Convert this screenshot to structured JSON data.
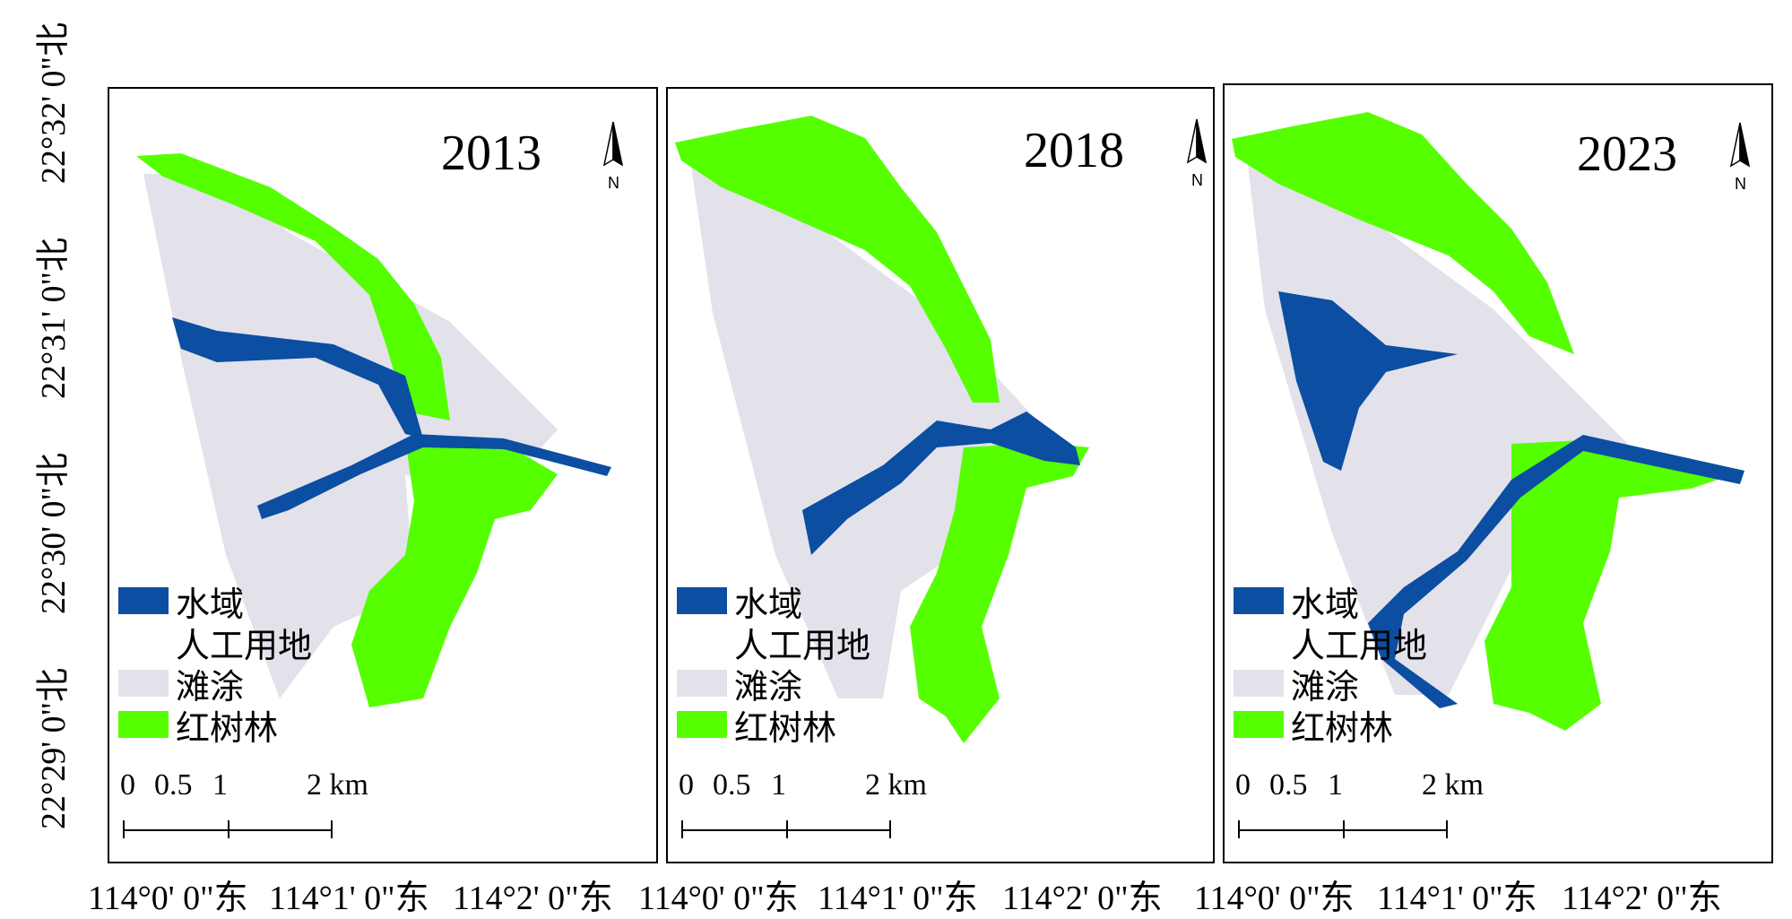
{
  "latitude_labels": [
    "22°32' 0\"北",
    "22°31' 0\"北",
    "22°30' 0\"北",
    "22°29' 0\"北"
  ],
  "longitude_labels": [
    "114°0' 0\"东",
    "114°1' 0\"东",
    "114°2' 0\"东"
  ],
  "panels": [
    {
      "year": "2013"
    },
    {
      "year": "2018"
    },
    {
      "year": "2023"
    }
  ],
  "north_arrow_letter": "N",
  "legend": [
    {
      "label": "水域",
      "color": "#0b4ea2",
      "icon": "water-swatch"
    },
    {
      "label": "人工用地",
      "color": "#ffffff",
      "icon": "artificial-land-swatch"
    },
    {
      "label": "滩涂",
      "color": "#e3e1ea",
      "icon": "mudflat-swatch"
    },
    {
      "label": "红树林",
      "color": "#55ff00",
      "icon": "mangrove-swatch"
    }
  ],
  "scale_bar": {
    "labels": [
      "0",
      "0.5",
      "1",
      "2 km"
    ]
  }
}
